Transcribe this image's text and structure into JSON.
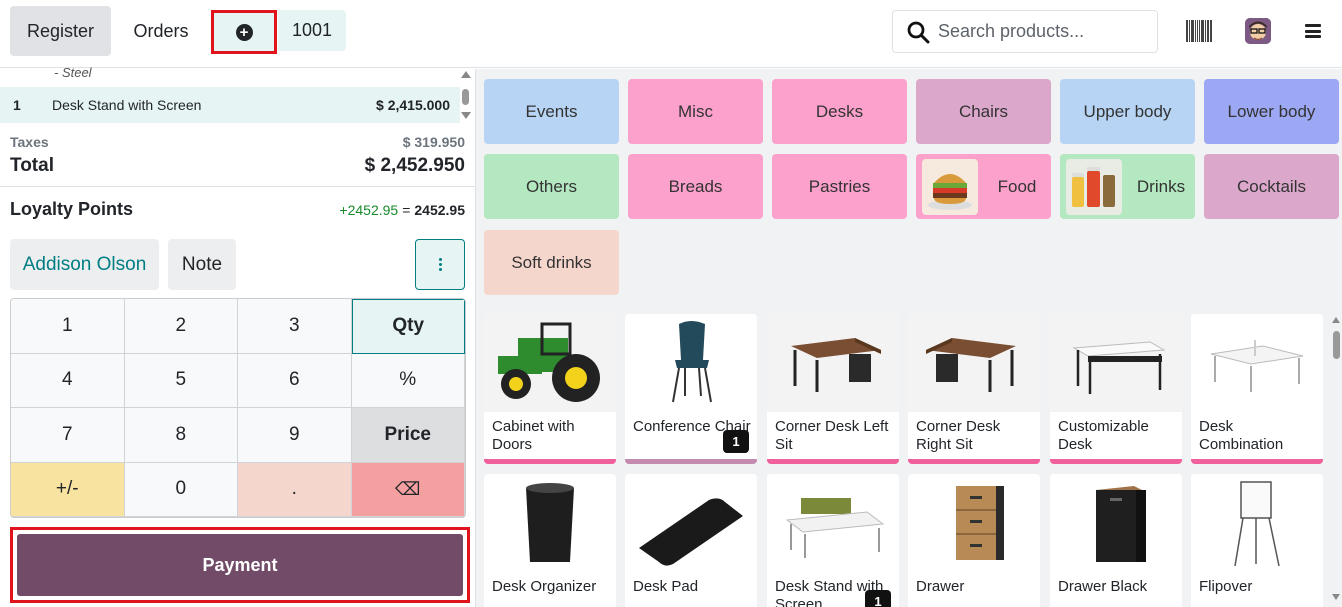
{
  "topbar": {
    "register_label": "Register",
    "orders_label": "Orders",
    "add_order_icon": "plus-circle-icon",
    "current_order": "1001",
    "search_placeholder": "Search products...",
    "barcode_icon": "barcode-icon",
    "avatar_icon": "user-avatar",
    "menu_icon": "hamburger-menu-icon"
  },
  "order": {
    "previous_line_note": "- Steel",
    "lines": [
      {
        "qty": "1",
        "name": "Desk Stand with Screen",
        "price": "$ 2,415.000"
      }
    ],
    "taxes_label": "Taxes",
    "taxes_value": "$ 319.950",
    "total_label": "Total",
    "total_value": "$ 2,452.950",
    "loyalty_label": "Loyalty Points",
    "loyalty_gain": "+2452.95",
    "loyalty_eq": "=",
    "loyalty_total": "2452.95"
  },
  "actions": {
    "customer": "Addison Olson",
    "note": "Note",
    "more_icon": "vertical-ellipsis-icon"
  },
  "numpad": {
    "keys": [
      "1",
      "2",
      "3",
      "Qty",
      "4",
      "5",
      "6",
      "%",
      "7",
      "8",
      "9",
      "Price",
      "+/-",
      "0",
      ".",
      "⌫"
    ]
  },
  "payment_label": "Payment",
  "categories": [
    {
      "label": "Events",
      "color": "#b8d4f4"
    },
    {
      "label": "Misc",
      "color": "#fca0cc"
    },
    {
      "label": "Desks",
      "color": "#fca0cc"
    },
    {
      "label": "Chairs",
      "color": "#dba8cc"
    },
    {
      "label": "Upper body",
      "color": "#b8d4f4"
    },
    {
      "label": "Lower body",
      "color": "#9ca8f4"
    },
    {
      "label": "Others",
      "color": "#b4e8c0"
    },
    {
      "label": "Breads",
      "color": "#fca0cc"
    },
    {
      "label": "Pastries",
      "color": "#fca0cc"
    },
    {
      "label": "Food",
      "color": "#fca0cc",
      "icon": "burger-image"
    },
    {
      "label": "Drinks",
      "color": "#b4e8c0",
      "icon": "drinks-image"
    },
    {
      "label": "Cocktails",
      "color": "#dba8cc"
    },
    {
      "label": "Soft drinks",
      "color": "#f5d6cc"
    }
  ],
  "products": [
    {
      "name": "Cabinet with Doors",
      "icon": "tractor-image"
    },
    {
      "name": "Conference Chair",
      "icon": "chair-image",
      "qty_badge": "1"
    },
    {
      "name": "Corner Desk Left Sit",
      "icon": "corner-desk-image"
    },
    {
      "name": "Corner Desk Right Sit",
      "icon": "corner-desk-image"
    },
    {
      "name": "Customizable Desk",
      "icon": "desk-image"
    },
    {
      "name": "Desk Combination",
      "icon": "desk-combination-image"
    },
    {
      "name": "Desk Organizer",
      "icon": "organizer-image"
    },
    {
      "name": "Desk Pad",
      "icon": "desk-pad-image"
    },
    {
      "name": "Desk Stand with Screen",
      "icon": "desk-stand-image",
      "qty_badge": "1"
    },
    {
      "name": "Drawer",
      "icon": "drawer-image"
    },
    {
      "name": "Drawer Black",
      "icon": "drawer-black-image"
    },
    {
      "name": "Flipover",
      "icon": "flipover-image"
    }
  ]
}
